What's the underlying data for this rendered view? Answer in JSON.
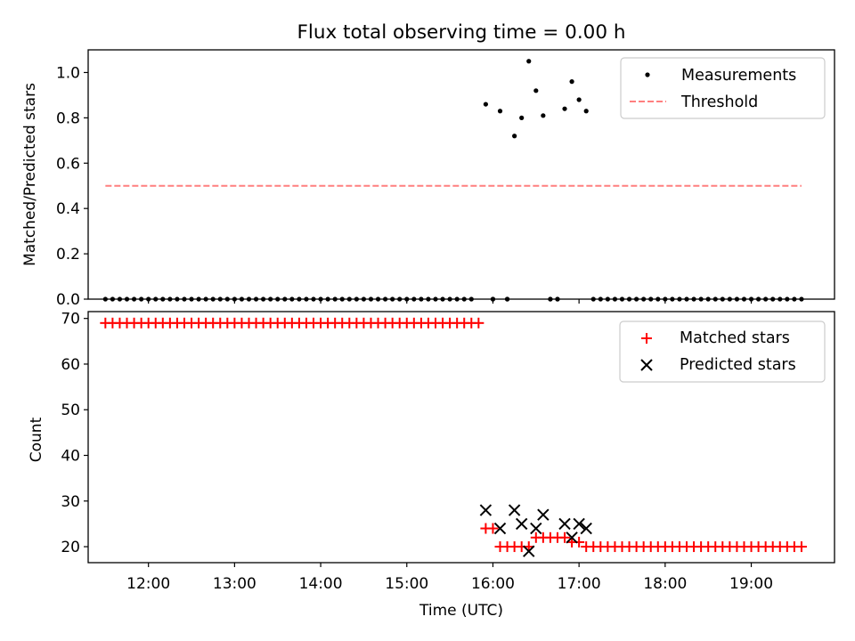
{
  "chart_data": [
    {
      "type": "scatter",
      "title": "Flux total observing time = 0.00 h",
      "xlabel": "",
      "ylabel": "Matched/Predicted stars",
      "ylim": [
        0,
        1.1
      ],
      "yticks": [
        0.0,
        0.2,
        0.4,
        0.6,
        0.8,
        1.0
      ],
      "ytick_labels": [
        "0.0",
        "0.2",
        "0.4",
        "0.6",
        "0.8",
        "1.0"
      ],
      "xlim": [
        "11:18",
        "19:58"
      ],
      "legend": {
        "placement": "top-right",
        "entries": [
          "Measurements",
          "Threshold"
        ]
      },
      "series": [
        {
          "name": "Measurements",
          "kind": "points",
          "color": "#000000",
          "zero_band": {
            "from": "11:30",
            "to": "19:35",
            "step_min": 5,
            "value": 0,
            "gaps": [
              [
                "15:49",
                "15:59"
              ],
              [
                "16:04",
                "16:09"
              ],
              [
                "16:14",
                "16:39"
              ],
              [
                "16:49",
                "17:09"
              ]
            ],
            "extra_times": [
              "16:00",
              "16:10",
              "16:40",
              "16:45"
            ]
          },
          "points": [
            {
              "x": "15:55",
              "y": 0.86
            },
            {
              "x": "16:05",
              "y": 0.83
            },
            {
              "x": "16:15",
              "y": 0.72
            },
            {
              "x": "16:20",
              "y": 0.8
            },
            {
              "x": "16:25",
              "y": 1.05
            },
            {
              "x": "16:30",
              "y": 0.92
            },
            {
              "x": "16:35",
              "y": 0.81
            },
            {
              "x": "16:50",
              "y": 0.84
            },
            {
              "x": "16:55",
              "y": 0.96
            },
            {
              "x": "17:00",
              "y": 0.88
            },
            {
              "x": "17:05",
              "y": 0.83
            }
          ]
        },
        {
          "name": "Threshold",
          "kind": "dashed-line",
          "color": "#ff7f7f",
          "x": [
            "11:30",
            "19:35"
          ],
          "y": 0.5
        }
      ]
    },
    {
      "type": "scatter",
      "title": "",
      "xlabel": "Time (UTC)",
      "ylabel": "Count",
      "ylim": [
        16.5,
        71.5
      ],
      "yticks": [
        20,
        30,
        40,
        50,
        60,
        70
      ],
      "ytick_labels": [
        "20",
        "30",
        "40",
        "50",
        "60",
        "70"
      ],
      "xticks": [
        "12:00",
        "13:00",
        "14:00",
        "15:00",
        "16:00",
        "17:00",
        "18:00",
        "19:00"
      ],
      "xlim": [
        "11:18",
        "19:58"
      ],
      "legend": {
        "placement": "top-right",
        "entries": [
          "Matched stars",
          "Predicted stars"
        ]
      },
      "series": [
        {
          "name": "Matched stars",
          "marker": "+",
          "color": "#ff0000",
          "runs": [
            {
              "from": "11:30",
              "to": "15:50",
              "step_min": 5,
              "value": 69
            },
            {
              "from": "15:55",
              "to": "16:00",
              "step_min": 5,
              "value": 24
            },
            {
              "from": "16:05",
              "to": "16:25",
              "step_min": 5,
              "value": 20
            },
            {
              "from": "16:30",
              "to": "16:50",
              "step_min": 5,
              "value": 22
            },
            {
              "from": "16:55",
              "to": "17:00",
              "step_min": 5,
              "value": 21
            },
            {
              "from": "17:05",
              "to": "19:35",
              "step_min": 5,
              "value": 20
            }
          ]
        },
        {
          "name": "Predicted stars",
          "marker": "x",
          "color": "#000000",
          "points": [
            {
              "x": "15:55",
              "y": 28
            },
            {
              "x": "16:05",
              "y": 24
            },
            {
              "x": "16:15",
              "y": 28
            },
            {
              "x": "16:20",
              "y": 25
            },
            {
              "x": "16:25",
              "y": 19
            },
            {
              "x": "16:30",
              "y": 24
            },
            {
              "x": "16:35",
              "y": 27
            },
            {
              "x": "16:50",
              "y": 25
            },
            {
              "x": "16:55",
              "y": 22
            },
            {
              "x": "17:00",
              "y": 25
            },
            {
              "x": "17:05",
              "y": 24
            }
          ]
        }
      ]
    }
  ]
}
